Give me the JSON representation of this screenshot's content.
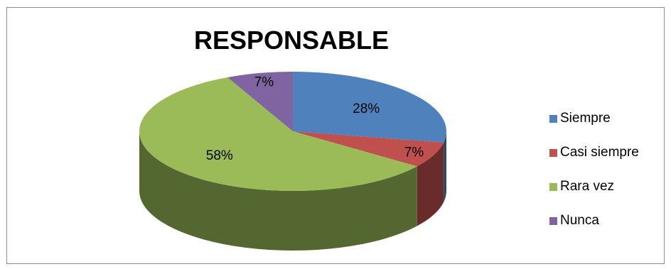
{
  "chart_data": {
    "type": "pie",
    "title": "RESPONSABLE",
    "categories": [
      "Siempre",
      "Casi siempre",
      "Rara vez",
      "Nunca"
    ],
    "values": [
      28,
      7,
      58,
      7
    ],
    "data_labels": [
      "28%",
      "7%",
      "58%",
      "7%"
    ],
    "colors": [
      "#4f81bd",
      "#c0504d",
      "#9bbb59",
      "#8064a2"
    ],
    "legend_position": "right",
    "style": "3d"
  },
  "legend": {
    "items": [
      {
        "label": "Siempre",
        "color": "#4f81bd"
      },
      {
        "label": "Casi siempre",
        "color": "#c0504d"
      },
      {
        "label": "Rara vez",
        "color": "#9bbb59"
      },
      {
        "label": "Nunca",
        "color": "#8064a2"
      }
    ]
  }
}
